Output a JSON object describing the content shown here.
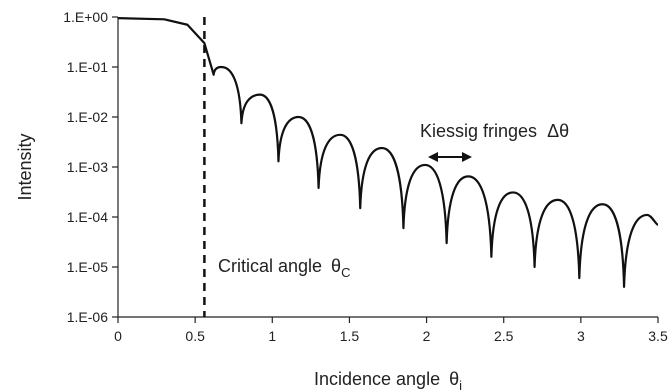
{
  "chart_data": {
    "type": "line",
    "title": "",
    "xlabel": "Incidence angle",
    "xlabel_symbol": "θ",
    "xlabel_subscript": "i",
    "ylabel": "Intensity",
    "y_scale": "log",
    "xlim": [
      0,
      3.5
    ],
    "ylim": [
      1e-06,
      1
    ],
    "x_ticks": [
      0,
      0.5,
      1,
      1.5,
      2,
      2.5,
      3,
      3.5
    ],
    "x_tick_labels": [
      "0",
      "0.5",
      "1",
      "1.5",
      "2",
      "2.5",
      "3",
      "3.5"
    ],
    "y_ticks": [
      1,
      0.1,
      0.01,
      0.001,
      0.0001,
      1e-05,
      1e-06
    ],
    "y_tick_labels": [
      "1.E+00",
      "1.E-01",
      "1.E-02",
      "1.E-03",
      "1.E-04",
      "1.E-05",
      "1.E-06"
    ],
    "grid": false,
    "legend": "none",
    "critical_angle_x": 0.56,
    "series": [
      {
        "color": "#111111",
        "minima_x": [
          0.62,
          0.8,
          1.04,
          1.3,
          1.57,
          1.85,
          2.13,
          2.42,
          2.7,
          2.99,
          3.28
        ],
        "minima_y": [
          0.07,
          0.0075,
          0.0013,
          0.00038,
          0.00015,
          6e-05,
          3e-05,
          1.6e-05,
          1e-05,
          6e-06,
          4e-06
        ],
        "maxima_x": [
          0.67,
          0.92,
          1.17,
          1.44,
          1.71,
          1.99,
          2.27,
          2.56,
          2.85,
          3.14,
          3.43
        ],
        "maxima_y": [
          0.1,
          0.028,
          0.01,
          0.0044,
          0.0024,
          0.0011,
          0.00065,
          0.00031,
          0.00022,
          0.00018,
          0.00011
        ],
        "plateau": [
          [
            0,
            0.95
          ],
          [
            0.3,
            0.9
          ],
          [
            0.45,
            0.7
          ],
          [
            0.56,
            0.3
          ]
        ],
        "end": [
          3.5,
          7e-05
        ]
      }
    ],
    "annotations": {
      "critical": {
        "text": "Critical angle",
        "symbol": "θ",
        "subscript": "C"
      },
      "fringes": {
        "text": "Kiessig fringes",
        "symbol": "Δθ"
      }
    }
  }
}
